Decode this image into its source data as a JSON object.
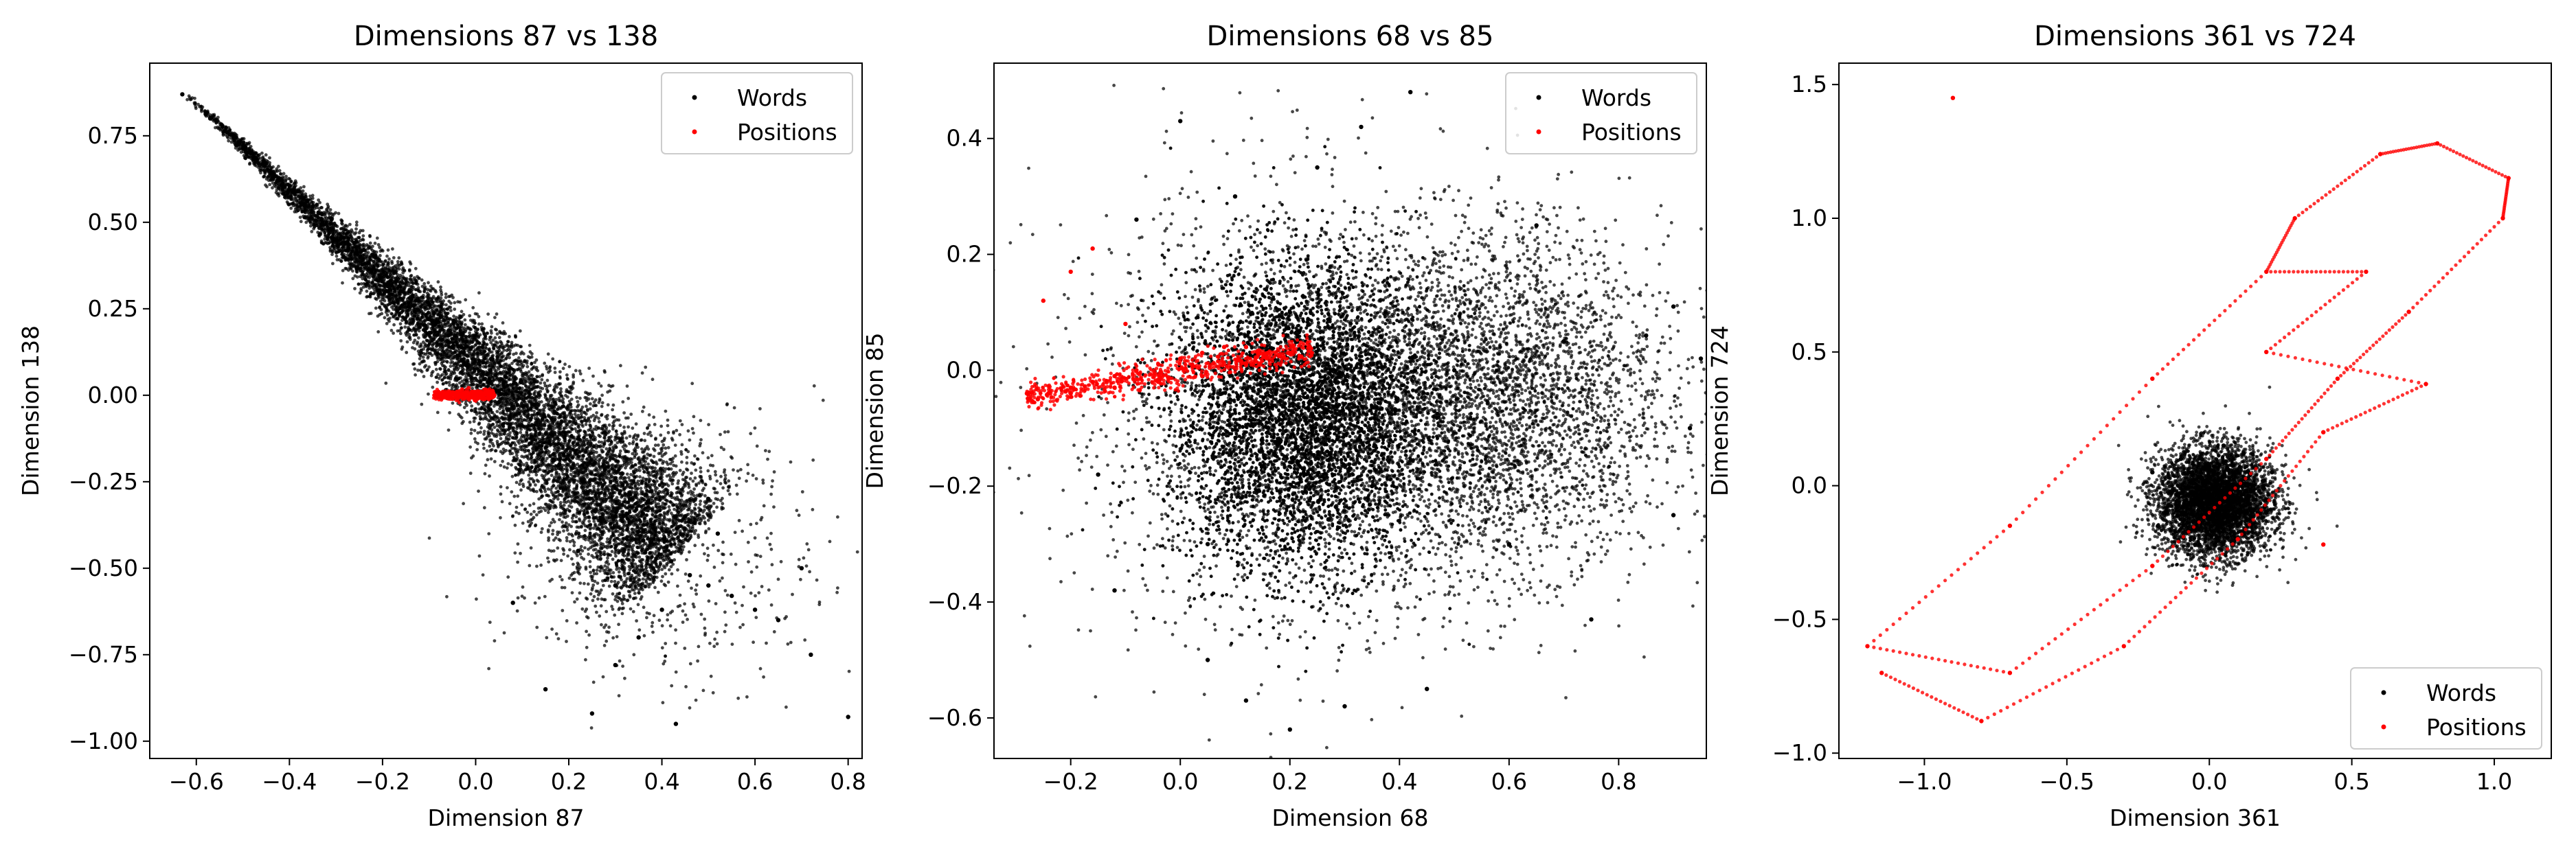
{
  "chart_data": [
    {
      "type": "scatter",
      "title": "Dimensions 87 vs 138",
      "xlabel": "Dimension 87",
      "ylabel": "Dimension 138",
      "xlim": [
        -0.7,
        0.83
      ],
      "ylim": [
        -1.05,
        0.96
      ],
      "xticks": [
        -0.6,
        -0.4,
        -0.2,
        0.0,
        0.2,
        0.4,
        0.6,
        0.8
      ],
      "xtick_labels": [
        "−0.6",
        "−0.4",
        "−0.2",
        "0.0",
        "0.2",
        "0.4",
        "0.6",
        "0.8"
      ],
      "yticks": [
        -1.0,
        -0.75,
        -0.5,
        -0.25,
        0.0,
        0.25,
        0.5,
        0.75
      ],
      "ytick_labels": [
        "−1.00",
        "−0.75",
        "−0.50",
        "−0.25",
        "0.00",
        "0.25",
        "0.50",
        "0.75"
      ],
      "legend": {
        "placement": "top-right",
        "entries": [
          "Words",
          "Positions"
        ]
      },
      "grid": false,
      "series": [
        {
          "name": "Words",
          "color": "#000000",
          "points": [
            [
              -0.63,
              0.87
            ],
            [
              -0.57,
              0.8
            ],
            [
              -0.52,
              0.75
            ],
            [
              -0.45,
              0.67
            ],
            [
              -0.38,
              0.59
            ],
            [
              -0.31,
              0.51
            ],
            [
              -0.24,
              0.42
            ],
            [
              -0.17,
              0.33
            ],
            [
              -0.1,
              0.22
            ],
            [
              -0.03,
              0.1
            ],
            [
              0.05,
              -0.02
            ],
            [
              0.12,
              -0.12
            ],
            [
              0.18,
              -0.2
            ],
            [
              0.24,
              -0.28
            ],
            [
              0.3,
              -0.35
            ],
            [
              0.36,
              -0.42
            ],
            [
              0.42,
              -0.48
            ],
            [
              0.46,
              -0.52
            ],
            [
              0.5,
              -0.55
            ],
            [
              0.55,
              -0.58
            ],
            [
              0.6,
              -0.62
            ],
            [
              0.4,
              -0.62
            ],
            [
              0.3,
              -0.55
            ],
            [
              0.22,
              -0.45
            ],
            [
              0.45,
              -0.35
            ],
            [
              0.5,
              -0.3
            ],
            [
              0.52,
              -0.4
            ],
            [
              0.7,
              -0.5
            ],
            [
              0.8,
              -0.93
            ],
            [
              0.43,
              -0.95
            ],
            [
              0.15,
              -0.85
            ],
            [
              0.25,
              -0.92
            ],
            [
              0.65,
              -0.65
            ],
            [
              0.72,
              -0.75
            ],
            [
              0.35,
              -0.7
            ],
            [
              0.3,
              -0.78
            ],
            [
              0.08,
              -0.6
            ]
          ]
        },
        {
          "name": "Positions",
          "color": "#ff0000",
          "points": [
            [
              -0.08,
              0.01
            ],
            [
              -0.06,
              0.0
            ],
            [
              -0.04,
              0.01
            ],
            [
              -0.02,
              0.0
            ],
            [
              0.0,
              0.0
            ],
            [
              0.02,
              -0.01
            ],
            [
              0.04,
              0.0
            ],
            [
              -0.05,
              -0.01
            ],
            [
              0.01,
              0.01
            ]
          ]
        }
      ]
    },
    {
      "type": "scatter",
      "title": "Dimensions 68 vs 85",
      "xlabel": "Dimension 68",
      "ylabel": "Dimension 85",
      "xlim": [
        -0.34,
        0.96
      ],
      "ylim": [
        -0.67,
        0.53
      ],
      "xticks": [
        -0.2,
        0.0,
        0.2,
        0.4,
        0.6,
        0.8
      ],
      "xtick_labels": [
        "−0.2",
        "0.0",
        "0.2",
        "0.4",
        "0.6",
        "0.8"
      ],
      "yticks": [
        -0.6,
        -0.4,
        -0.2,
        0.0,
        0.2,
        0.4
      ],
      "ytick_labels": [
        "−0.6",
        "−0.4",
        "−0.2",
        "0.0",
        "0.2",
        "0.4"
      ],
      "legend": {
        "placement": "top-right",
        "entries": [
          "Words",
          "Positions"
        ]
      },
      "grid": false,
      "series": [
        {
          "name": "Words",
          "color": "#000000",
          "points": [
            [
              0.0,
              0.43
            ],
            [
              0.33,
              0.42
            ],
            [
              0.42,
              0.48
            ],
            [
              0.9,
              0.11
            ],
            [
              0.85,
              0.06
            ],
            [
              0.95,
              0.02
            ],
            [
              0.93,
              -0.1
            ],
            [
              0.9,
              -0.25
            ],
            [
              0.2,
              -0.62
            ],
            [
              0.05,
              -0.5
            ],
            [
              0.12,
              -0.57
            ],
            [
              -0.12,
              -0.38
            ],
            [
              -0.15,
              -0.18
            ],
            [
              -0.08,
              0.26
            ],
            [
              0.25,
              0.35
            ],
            [
              0.65,
              0.25
            ],
            [
              0.75,
              -0.43
            ],
            [
              0.45,
              -0.55
            ],
            [
              0.3,
              -0.58
            ],
            [
              0.6,
              -0.3
            ],
            [
              0.1,
              0.3
            ],
            [
              0.05,
              -0.3
            ],
            [
              0.2,
              0.1
            ],
            [
              0.5,
              0.0
            ],
            [
              0.7,
              0.05
            ],
            [
              0.35,
              -0.2
            ]
          ]
        },
        {
          "name": "Positions",
          "color": "#ff0000",
          "points": [
            [
              -0.28,
              -0.04
            ],
            [
              -0.24,
              -0.04
            ],
            [
              -0.2,
              -0.03
            ],
            [
              -0.16,
              -0.02
            ],
            [
              -0.12,
              -0.01
            ],
            [
              -0.08,
              0.0
            ],
            [
              -0.04,
              0.01
            ],
            [
              0.0,
              0.02
            ],
            [
              0.04,
              0.03
            ],
            [
              0.08,
              0.04
            ],
            [
              0.12,
              0.04
            ],
            [
              0.16,
              0.03
            ],
            [
              0.2,
              0.03
            ],
            [
              0.24,
              0.03
            ],
            [
              0.12,
              0.01
            ],
            [
              0.04,
              -0.01
            ],
            [
              -0.04,
              -0.02
            ],
            [
              -0.12,
              -0.03
            ],
            [
              -0.2,
              -0.04
            ],
            [
              -0.26,
              -0.05
            ],
            [
              -0.25,
              0.12
            ],
            [
              -0.2,
              0.17
            ],
            [
              -0.16,
              0.21
            ],
            [
              -0.1,
              0.08
            ]
          ]
        }
      ]
    },
    {
      "type": "scatter",
      "title": "Dimensions 361 vs 724",
      "xlabel": "Dimension 361",
      "ylabel": "Dimension 724",
      "xlim": [
        -1.3,
        1.2
      ],
      "ylim": [
        -1.02,
        1.58
      ],
      "xticks": [
        -1.0,
        -0.5,
        0.0,
        0.5,
        1.0
      ],
      "xtick_labels": [
        "−1.0",
        "−0.5",
        "0.0",
        "0.5",
        "1.0"
      ],
      "yticks": [
        -1.0,
        -0.5,
        0.0,
        0.5,
        1.0,
        1.5
      ],
      "ytick_labels": [
        "−1.0",
        "−0.5",
        "0.0",
        "0.5",
        "1.0",
        "1.5"
      ],
      "legend": {
        "placement": "bottom-right",
        "entries": [
          "Words",
          "Positions"
        ]
      },
      "grid": false,
      "series": [
        {
          "name": "Words",
          "color": "#000000",
          "points": [
            [
              0.0,
              -0.05
            ],
            [
              -0.15,
              -0.1
            ],
            [
              0.15,
              0.0
            ],
            [
              -0.1,
              0.1
            ],
            [
              0.1,
              -0.15
            ],
            [
              0.2,
              -0.1
            ],
            [
              -0.2,
              0.05
            ],
            [
              0.05,
              0.15
            ],
            [
              -0.05,
              -0.22
            ],
            [
              0.22,
              0.05
            ],
            [
              -0.18,
              -0.15
            ],
            [
              0.12,
              0.12
            ]
          ]
        },
        {
          "name": "Positions",
          "color": "#ff0000",
          "points": [
            [
              -0.9,
              1.45
            ],
            [
              0.4,
              -0.22
            ],
            [
              -1.15,
              -0.7
            ],
            [
              -0.8,
              -0.88
            ],
            [
              -0.3,
              -0.6
            ],
            [
              0.1,
              -0.2
            ],
            [
              0.4,
              0.2
            ],
            [
              0.76,
              0.38
            ],
            [
              0.2,
              0.5
            ],
            [
              0.55,
              0.8
            ],
            [
              0.2,
              0.8
            ],
            [
              0.3,
              1.0
            ],
            [
              0.6,
              1.24
            ],
            [
              0.8,
              1.28
            ],
            [
              1.05,
              1.15
            ],
            [
              1.03,
              1.0
            ],
            [
              0.7,
              0.65
            ],
            [
              0.45,
              0.4
            ],
            [
              0.2,
              0.1
            ],
            [
              -0.2,
              -0.3
            ],
            [
              -0.7,
              -0.7
            ],
            [
              -1.2,
              -0.6
            ],
            [
              -0.7,
              -0.15
            ],
            [
              -0.2,
              0.4
            ]
          ]
        }
      ]
    }
  ]
}
